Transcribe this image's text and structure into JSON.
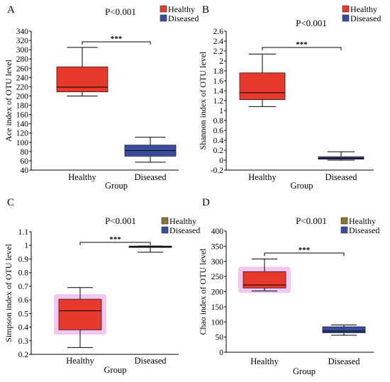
{
  "colors": {
    "healthy_red": "#e8392d",
    "diseased_blue": "#3a4c9e",
    "olive_box": "#8a7436",
    "dark_olive": "#4a4a2a",
    "glow_pink": "#f4c6f2",
    "axis": "#000000"
  },
  "chart_data": [
    {
      "panel": "A",
      "type": "box",
      "title": "P<0.001",
      "significance": "***",
      "ylabel": "Ace index of OTU level",
      "xlabel": "Group",
      "categories": [
        "Healthy",
        "Diseased"
      ],
      "legend": [
        {
          "label": "Healthy",
          "color": "#e8392d"
        },
        {
          "label": "Diseased",
          "color": "#3a4c9e"
        }
      ],
      "ylim": [
        40,
        340
      ],
      "yticks": [
        40,
        60,
        80,
        100,
        120,
        140,
        160,
        180,
        200,
        220,
        240,
        260,
        280,
        300,
        320,
        340
      ],
      "boxes": [
        {
          "category": "Healthy",
          "min": 200,
          "q1": 209,
          "median": 219,
          "q3": 263,
          "max": 305,
          "fill": "#e8392d"
        },
        {
          "category": "Diseased",
          "min": 57,
          "q1": 70,
          "median": 82,
          "q3": 94,
          "max": 111,
          "fill": "#3a4c9e"
        }
      ]
    },
    {
      "panel": "B",
      "type": "box",
      "title": "P<0.001",
      "significance": "***",
      "ylabel": "Shannon index of OTU level",
      "xlabel": "Group",
      "categories": [
        "Healthy",
        "Diseased"
      ],
      "legend": [
        {
          "label": "Healthy",
          "color": "#e8392d"
        },
        {
          "label": "Diseased",
          "color": "#3a4c9e"
        }
      ],
      "ylim": [
        -0.2,
        2.6
      ],
      "yticks": [
        -0.2,
        0,
        0.2,
        0.4,
        0.6,
        0.8,
        1,
        1.2,
        1.4,
        1.6,
        1.8,
        2,
        2.2,
        2.4,
        2.6
      ],
      "yticklabels": [
        "-0.2",
        "0",
        "0.2",
        "0.4",
        "0.6",
        "0.8",
        "1",
        "1.2",
        "1.4",
        "1.6",
        "1.8",
        "2",
        "2.2",
        "2.4",
        "2.6"
      ],
      "boxes": [
        {
          "category": "Healthy",
          "min": 1.08,
          "q1": 1.22,
          "median": 1.36,
          "q3": 1.76,
          "max": 2.14,
          "fill": "#e8392d"
        },
        {
          "category": "Diseased",
          "min": 0.0,
          "q1": 0.02,
          "median": 0.04,
          "q3": 0.07,
          "max": 0.17,
          "fill": "#3a4c9e"
        }
      ]
    },
    {
      "panel": "C",
      "type": "box",
      "title": "P<0.001",
      "significance": "***",
      "ylabel": "Simpson index of OTU level",
      "xlabel": "Group",
      "categories": [
        "Healthy",
        "Diseased"
      ],
      "legend": [
        {
          "label": "Healthy",
          "color": "#8a7436"
        },
        {
          "label": "Diseased",
          "color": "#3a4c9e"
        }
      ],
      "ylim": [
        0.2,
        1.1
      ],
      "yticks": [
        0.2,
        0.3,
        0.4,
        0.5,
        0.6,
        0.7,
        0.8,
        0.9,
        1,
        1.1
      ],
      "yticklabels": [
        "0.2",
        "0.3",
        "0.4",
        "0.5",
        "0.6",
        "0.7",
        "0.8",
        "0.9",
        "1",
        "1.1"
      ],
      "boxes": [
        {
          "category": "Healthy",
          "min": 0.25,
          "q1": 0.38,
          "median": 0.52,
          "q3": 0.605,
          "max": 0.69,
          "fill": "#e8392d",
          "glow": true
        },
        {
          "category": "Diseased",
          "min": 0.95,
          "q1": 0.985,
          "median": 0.99,
          "q3": 0.995,
          "max": 0.995,
          "fill": "#4a4a2a"
        }
      ]
    },
    {
      "panel": "D",
      "type": "box",
      "title": "P<0.001",
      "significance": "***",
      "ylabel": "Chao index of OTU level",
      "xlabel": "Group",
      "categories": [
        "Healthy",
        "Diseased"
      ],
      "legend": [
        {
          "label": "Healthy",
          "color": "#8a7436"
        },
        {
          "label": "Diseased",
          "color": "#3a4c9e"
        }
      ],
      "ylim": [
        0,
        400
      ],
      "yticks": [
        0,
        50,
        100,
        150,
        200,
        250,
        300,
        350,
        400
      ],
      "boxes": [
        {
          "category": "Healthy",
          "min": 202,
          "q1": 212,
          "median": 222,
          "q3": 266,
          "max": 308,
          "fill": "#e8392d",
          "glow": true
        },
        {
          "category": "Diseased",
          "min": 56,
          "q1": 64,
          "median": 70,
          "q3": 84,
          "max": 90,
          "fill": "#3a4c9e"
        }
      ]
    }
  ]
}
